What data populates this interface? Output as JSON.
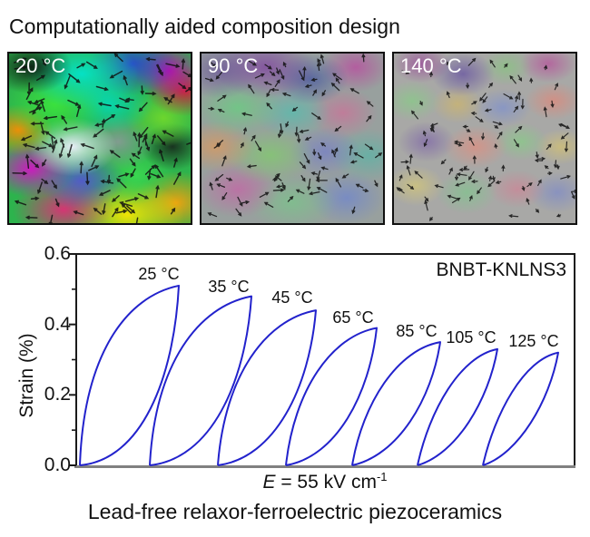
{
  "header": {
    "title": "Computationally aided composition design"
  },
  "panels": [
    {
      "label": "20 °C"
    },
    {
      "label": "90 °C"
    },
    {
      "label": "140 °C"
    }
  ],
  "chart_data": {
    "type": "line",
    "sample_label": "BNBT-KNLNS3",
    "ylabel": "Strain (%)",
    "xlabel": "E = 55 kV cm⁻¹",
    "xlabel_parts": {
      "symbol": "E",
      "rest": " = 55 kV cm",
      "exponent": "-1"
    },
    "ylim": [
      0,
      0.6
    ],
    "y_tick_labels": [
      "0.0",
      "0.2",
      "0.4",
      "0.6"
    ],
    "y_minor_ticks": [
      0.1,
      0.3,
      0.5
    ],
    "series": [
      {
        "label": "25 °C",
        "temperature_c": 25,
        "peak_strain_pct": 0.51
      },
      {
        "label": "35 °C",
        "temperature_c": 35,
        "peak_strain_pct": 0.48
      },
      {
        "label": "45 °C",
        "temperature_c": 45,
        "peak_strain_pct": 0.44
      },
      {
        "label": "65 °C",
        "temperature_c": 65,
        "peak_strain_pct": 0.39
      },
      {
        "label": "85 °C",
        "temperature_c": 85,
        "peak_strain_pct": 0.35
      },
      {
        "label": "105 °C",
        "temperature_c": 105,
        "peak_strain_pct": 0.33
      },
      {
        "label": "125 °C",
        "temperature_c": 125,
        "peak_strain_pct": 0.32
      }
    ],
    "curve_color": "#2222cc",
    "frame_color": "#1a1a1a",
    "baseline_color": "#808080",
    "legend_position": "none",
    "grid": false
  },
  "footer": {
    "caption": "Lead-free relaxor-ferroelectric piezoceramics"
  }
}
